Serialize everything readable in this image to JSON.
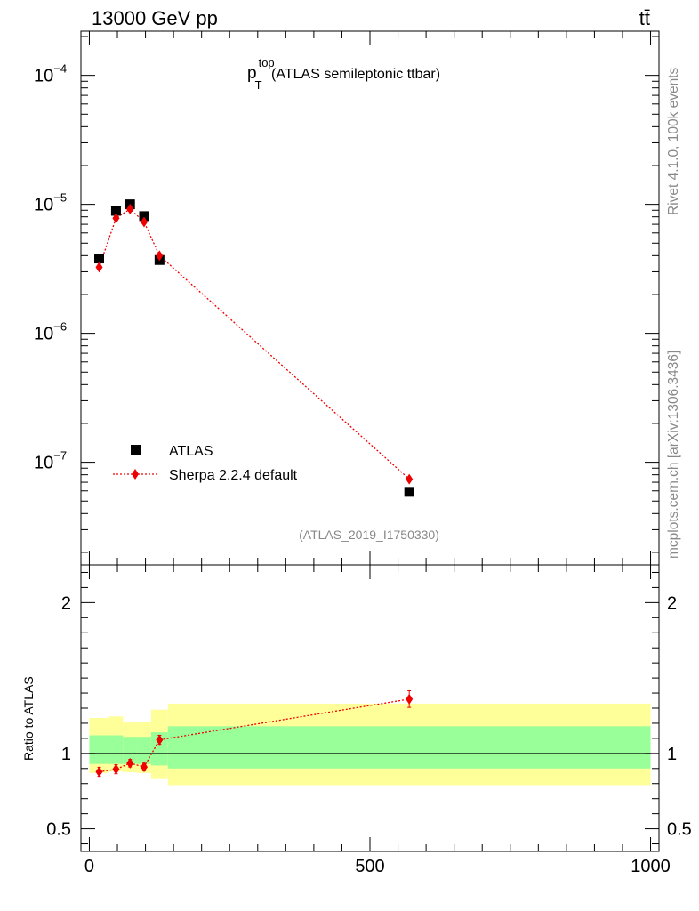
{
  "header": {
    "left": "13000 GeV pp",
    "right": "tt̄"
  },
  "side_text": {
    "rivet": "Rivet 4.1.0,  100k events",
    "mcplots": "mcplots.cern.ch [arXiv:1306.3436]"
  },
  "chart_data": [
    {
      "type": "scatter",
      "title": "p",
      "title_sup": "top",
      "title_sub": "T",
      "title_rest": " (ATLAS semileptonic ttbar)",
      "analysis_id": "(ATLAS_2019_I1750330)",
      "xlabel": "",
      "ylabel": "",
      "yscale": "log",
      "xlim": [
        -15,
        1015
      ],
      "ylim": [
        1.6e-08,
        0.00022
      ],
      "yticks": [
        1e-07,
        1e-06,
        1e-05,
        0.0001
      ],
      "ytick_labels": [
        {
          "base": "10",
          "exp": "−7"
        },
        {
          "base": "10",
          "exp": "−6"
        },
        {
          "base": "10",
          "exp": "−5"
        },
        {
          "base": "10",
          "exp": "−4"
        }
      ],
      "legend": {
        "position": "lower-left",
        "entries": [
          "ATLAS",
          "Sherpa 2.2.4 default"
        ]
      },
      "series": [
        {
          "name": "ATLAS",
          "marker": "square",
          "color": "#000000",
          "x": [
            17.5,
            47.5,
            72.5,
            97.5,
            125,
            570
          ],
          "values": [
            3.8e-06,
            8.9e-06,
            1e-05,
            8.1e-06,
            3.7e-06,
            5.9e-08
          ]
        },
        {
          "name": "Sherpa 2.2.4 default",
          "marker": "diamond",
          "line": "dotted",
          "color": "#ee0000",
          "x": [
            17.5,
            47.5,
            72.5,
            97.5,
            125,
            570
          ],
          "values": [
            3.25e-06,
            7.8e-06,
            9.2e-06,
            7.3e-06,
            4e-06,
            7.4e-08
          ]
        }
      ]
    },
    {
      "type": "scatter",
      "title": "",
      "xlabel": "",
      "ylabel": "Ratio to ATLAS",
      "xlim": [
        -15,
        1015
      ],
      "ylim": [
        0.35,
        2.25
      ],
      "yticks": [
        0.5,
        1,
        2
      ],
      "ytick_labels": [
        "0.5",
        "1",
        "2"
      ],
      "xticks": [
        0,
        500,
        1000
      ],
      "xtick_labels": [
        "0",
        "500",
        "1000"
      ],
      "bands": {
        "bin_edges": [
          0,
          35,
          60,
          85,
          110,
          140,
          1000
        ],
        "yellow_low": [
          0.87,
          0.88,
          0.875,
          0.87,
          0.83,
          0.79
        ],
        "yellow_high": [
          1.235,
          1.245,
          1.205,
          1.21,
          1.29,
          1.33
        ],
        "green_low": [
          0.93,
          0.93,
          0.93,
          0.93,
          0.92,
          0.9
        ],
        "green_high": [
          1.12,
          1.12,
          1.11,
          1.11,
          1.14,
          1.18
        ],
        "yellow_color": "#ffff99",
        "green_color": "#99ff99"
      },
      "series": [
        {
          "name": "Sherpa 2.2.4 default",
          "marker": "diamond",
          "line": "dotted",
          "color": "#ee0000",
          "x": [
            17.5,
            47.5,
            72.5,
            97.5,
            125,
            570
          ],
          "values": [
            0.878,
            0.895,
            0.935,
            0.91,
            1.09,
            1.36
          ],
          "errors": [
            0.03,
            0.03,
            0.025,
            0.025,
            0.03,
            0.055
          ]
        }
      ]
    }
  ]
}
